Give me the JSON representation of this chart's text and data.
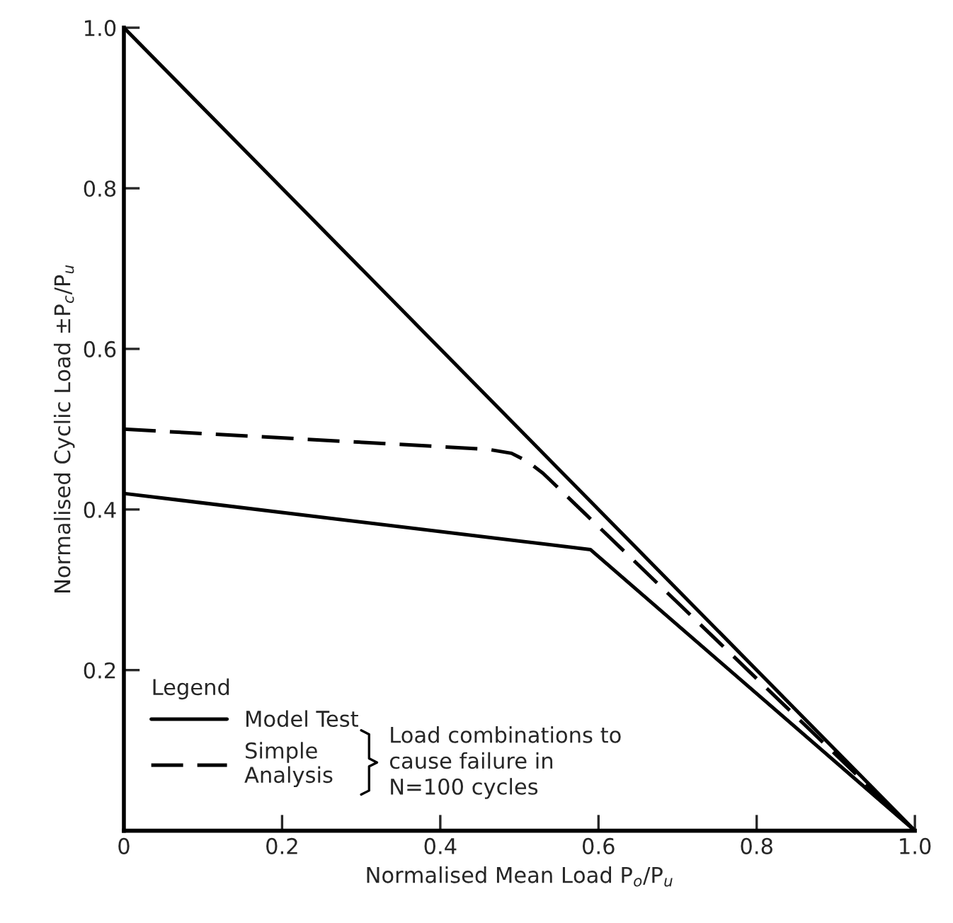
{
  "chart_data": {
    "type": "line",
    "xlabel": "Normalised Mean Load P$_{o}$/P$_{u}$",
    "ylabel": "Normalised Cyclic Load ±P$_{c}$/P$_{u}$",
    "legend_title": "Legend",
    "xlim": [
      0,
      1.0
    ],
    "ylim": [
      0,
      1.0
    ],
    "xticks": [
      0,
      0.2,
      0.4,
      0.6,
      0.8,
      {
        "value": 1.0,
        "label": "1.0"
      }
    ],
    "yticks": [
      0.2,
      0.4,
      0.6,
      0.8,
      {
        "value": 1.0,
        "label": "1.0"
      }
    ],
    "grid": false,
    "legend": "bottom left",
    "marker": "none",
    "series": [
      {
        "color": "#000000",
        "line_style": "solid",
        "x": [
          0,
          1.0
        ],
        "values": [
          1.0,
          0
        ]
      },
      {
        "name": "Model Test",
        "color": "#000000",
        "line_style": "solid",
        "x": [
          0,
          0.59,
          1.0
        ],
        "values": [
          0.42,
          0.35,
          0
        ]
      },
      {
        "name": "Simple\nAnalysis",
        "color": "#000000",
        "line_style": "dashed",
        "x": [
          0,
          0.46,
          0.49,
          0.51,
          0.53,
          1.0
        ],
        "values": [
          0.5,
          0.475,
          0.47,
          0.46,
          0.445,
          0
        ]
      }
    ],
    "annotations": [
      "Load combinations to\ncause failure in\nN=100 cycles"
    ]
  }
}
